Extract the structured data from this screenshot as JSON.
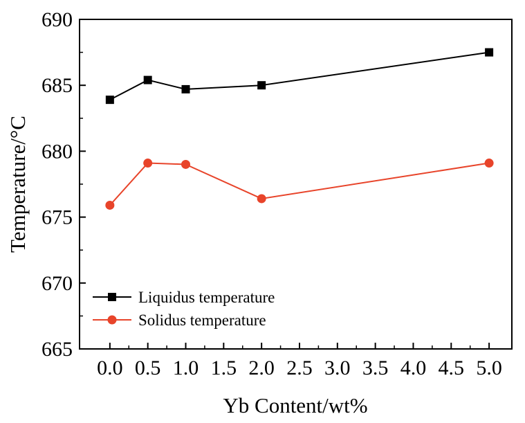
{
  "chart_data": {
    "type": "line",
    "title": "",
    "xlabel": "Yb Content/wt%",
    "ylabel": "Temperature/°C",
    "xlim": [
      -0.4,
      5.3
    ],
    "ylim": [
      665,
      690
    ],
    "x_ticks": [
      "0.0",
      "0.5",
      "1.0",
      "1.5",
      "2.0",
      "2.5",
      "3.0",
      "3.5",
      "4.0",
      "4.5",
      "5.0"
    ],
    "y_ticks": [
      "665",
      "670",
      "675",
      "680",
      "685",
      "690"
    ],
    "grid": false,
    "legend_position": "lower-left",
    "series": [
      {
        "name": "Liquidus temperature",
        "marker": "square",
        "color": "#000000",
        "x": [
          0.0,
          0.5,
          1.0,
          2.0,
          5.0
        ],
        "y": [
          683.9,
          685.4,
          684.7,
          685.0,
          687.5
        ]
      },
      {
        "name": "Solidus temperature",
        "marker": "circle",
        "color": "#e8442a",
        "x": [
          0.0,
          0.5,
          1.0,
          2.0,
          5.0
        ],
        "y": [
          675.9,
          679.1,
          679.0,
          676.4,
          679.1
        ]
      }
    ]
  }
}
